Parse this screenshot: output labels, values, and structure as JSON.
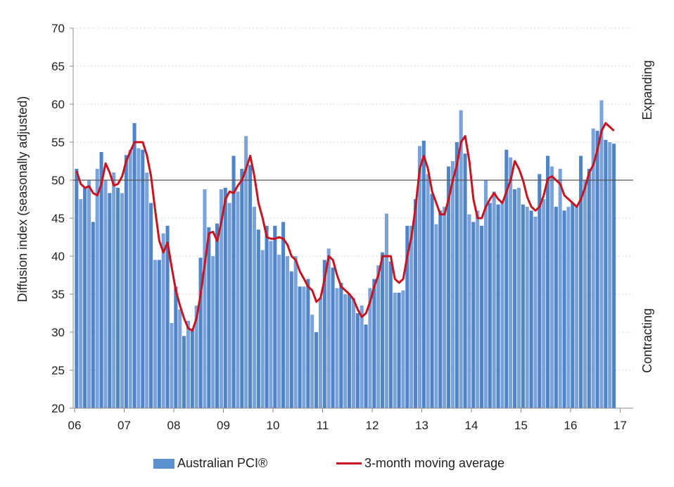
{
  "chart_data": {
    "type": "bar",
    "ylabel": "Diffusion index (seasonally adjusted)",
    "ylim": [
      20,
      70
    ],
    "yticks": [
      20,
      25,
      30,
      35,
      40,
      45,
      50,
      55,
      60,
      65,
      70
    ],
    "xticks": [
      "06",
      "07",
      "08",
      "09",
      "10",
      "11",
      "12",
      "13",
      "14",
      "15",
      "16",
      "17"
    ],
    "reference_line": 50,
    "side_labels": {
      "top": "Expanding",
      "bottom": "Contracting"
    },
    "grid": true,
    "legend_position": "bottom",
    "colors": {
      "bars": "#5b8fd0",
      "line": "#c8141e"
    },
    "series": [
      {
        "name": "Australian PCI®",
        "kind": "bar",
        "values": [
          51.5,
          47.5,
          49,
          50,
          44.5,
          51.5,
          53.7,
          50,
          48.3,
          51,
          49,
          48.3,
          53.3,
          54,
          57.5,
          54.2,
          54,
          51,
          47,
          39.5,
          39.5,
          43,
          44,
          31.2,
          36,
          33,
          29.5,
          31.5,
          30.5,
          33.5,
          39.8,
          48.8,
          43.8,
          40,
          44.3,
          48.8,
          49,
          47,
          53.2,
          48.5,
          51.5,
          55.8,
          52,
          46.5,
          43.5,
          40.8,
          44,
          42,
          44,
          40.2,
          44.5,
          40,
          38,
          40,
          36,
          36,
          37,
          32.3,
          30,
          34.5,
          39.5,
          41,
          38.5,
          35.8,
          36.5,
          35,
          35,
          34.5,
          32.5,
          33.5,
          31,
          35.8,
          37,
          38.8,
          40.5,
          45.6,
          39.3,
          35.2,
          35.2,
          35.5,
          44,
          44,
          47.5,
          54.5,
          55.2,
          50.8,
          48.2,
          44.2,
          46,
          46.5,
          51.8,
          52.5,
          55,
          59.2,
          53.5,
          45.5,
          44.5,
          46,
          44,
          50,
          47,
          48.5,
          46.8,
          47,
          54,
          53,
          48.8,
          49,
          46.8,
          46.5,
          46,
          45.2,
          50.8,
          47.5,
          53.2,
          51.8,
          46.5,
          51.5,
          46,
          46.5,
          47,
          46.5,
          53.2,
          50,
          51.5,
          56.8,
          56.5,
          60.5,
          55.3,
          55,
          54.8
        ]
      },
      {
        "name": "3-month moving average",
        "kind": "line",
        "values": [
          51.2,
          49.5,
          49,
          49.2,
          48.3,
          48,
          49.5,
          52.2,
          51,
          49.3,
          49.5,
          50.5,
          52.5,
          53.8,
          55,
          55,
          55,
          53.3,
          50.5,
          46,
          42,
          40.5,
          41.8,
          38.5,
          35.5,
          33.5,
          31.8,
          30.5,
          30.2,
          31.8,
          35,
          39,
          43,
          43.2,
          42,
          44.5,
          47.5,
          48.5,
          48.3,
          49.3,
          50,
          51.5,
          53.2,
          50.5,
          47,
          45,
          42.5,
          42.3,
          42.3,
          42.5,
          42.3,
          41.5,
          40,
          39.5,
          38,
          37,
          36,
          35.5,
          34,
          34.5,
          37,
          40,
          39.5,
          37.5,
          36,
          35.5,
          35,
          34.3,
          33,
          32,
          32.5,
          34,
          36,
          37.5,
          40,
          40,
          40,
          37,
          36.5,
          37,
          40,
          42.5,
          46.5,
          51.5,
          53.2,
          51.5,
          48.5,
          47,
          45.5,
          45.5,
          47.5,
          50,
          52,
          55,
          55.8,
          52.5,
          47.5,
          45,
          45,
          46.5,
          47.5,
          48.3,
          47.5,
          47,
          48.5,
          50,
          52.5,
          51.5,
          50,
          47.8,
          46.5,
          46,
          46.5,
          48,
          50.2,
          50.5,
          50,
          49.5,
          48,
          47.5,
          47,
          46.5,
          47.5,
          49,
          51,
          52,
          54,
          56.5,
          57.5,
          57,
          56.5
        ]
      }
    ]
  }
}
